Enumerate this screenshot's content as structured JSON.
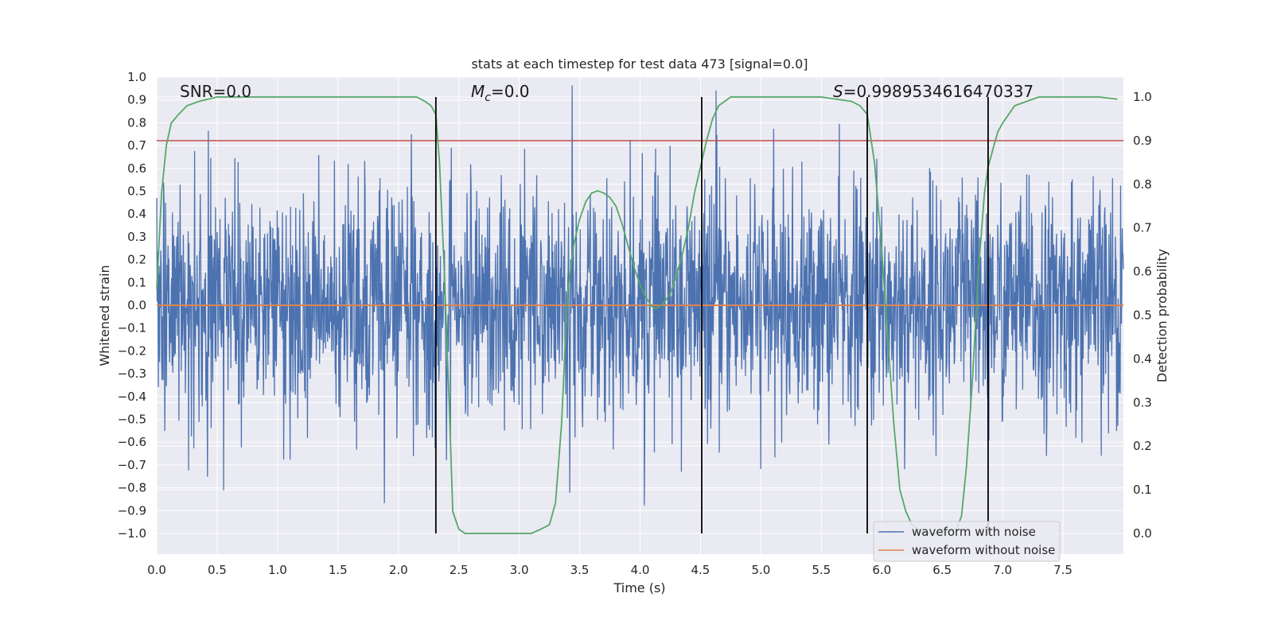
{
  "chart_data": {
    "type": "line",
    "title": "stats at each timestep for test data 473 [signal=0.0]",
    "xlabel": "Time (s)",
    "ylabel": "Whitened strain",
    "y2label": "Detection probability",
    "xlim": [
      0.0,
      8.0
    ],
    "ylim": [
      -1.0,
      1.0
    ],
    "y2lim": [
      0.0,
      1.0
    ],
    "xticks": [
      "0.0",
      "0.5",
      "1.0",
      "1.5",
      "2.0",
      "2.5",
      "3.0",
      "3.5",
      "4.0",
      "4.5",
      "5.0",
      "5.5",
      "6.0",
      "6.5",
      "7.0",
      "7.5"
    ],
    "yticks": [
      "1.0",
      "0.9",
      "0.8",
      "0.7",
      "0.6",
      "0.5",
      "0.4",
      "0.3",
      "0.2",
      "0.1",
      "0.0",
      "−0.1",
      "−0.2",
      "−0.3",
      "−0.4",
      "−0.5",
      "−0.6",
      "−0.7",
      "−0.8",
      "−0.9",
      "−1.0"
    ],
    "y2ticks": [
      "1.0",
      "0.9",
      "0.8",
      "0.7",
      "0.6",
      "0.5",
      "0.4",
      "0.3",
      "0.2",
      "0.1",
      "0.0"
    ],
    "grid": true,
    "annotations": {
      "snr": "SNR=0.0",
      "mc_symbol": "M",
      "mc_sub": "c",
      "mc_value": "=0.0",
      "s_symbol": "S",
      "s_value": "=0.9989534616470337"
    },
    "threshold": {
      "value": 0.9,
      "axis": "y2",
      "color": "#c44e52"
    },
    "vertical_lines_x": [
      2.31,
      4.51,
      5.88,
      6.88
    ],
    "series": [
      {
        "name": "waveform with noise",
        "color": "#4c72b0",
        "noise_envelope": {
          "typical_amplitude": 0.35,
          "max_peak": 0.99,
          "min_peak": -1.0
        }
      },
      {
        "name": "waveform without noise",
        "color": "#dd8452",
        "constant_value": 0.0
      },
      {
        "name": "",
        "color": "#55a868",
        "axis": "y2",
        "x": [
          0.0,
          0.04,
          0.08,
          0.12,
          0.18,
          0.25,
          0.35,
          0.5,
          1.0,
          1.5,
          2.0,
          2.15,
          2.22,
          2.27,
          2.31,
          2.34,
          2.38,
          2.42,
          2.45,
          2.5,
          2.55,
          2.7,
          3.0,
          3.1,
          3.18,
          3.25,
          3.3,
          3.35,
          3.4,
          3.45,
          3.5,
          3.55,
          3.6,
          3.65,
          3.7,
          3.75,
          3.8,
          3.85,
          3.9,
          3.95,
          4.0,
          4.05,
          4.1,
          4.13,
          4.16,
          4.2,
          4.25,
          4.3,
          4.35,
          4.4,
          4.45,
          4.5,
          4.55,
          4.6,
          4.65,
          4.7,
          4.75,
          4.8,
          5.0,
          5.5,
          5.75,
          5.82,
          5.88,
          5.94,
          6.0,
          6.05,
          6.1,
          6.15,
          6.2,
          6.25,
          6.3,
          6.35,
          6.5,
          6.62,
          6.66,
          6.7,
          6.75,
          6.8,
          6.85,
          6.88,
          6.92,
          6.96,
          7.0,
          7.05,
          7.1,
          7.2,
          7.3,
          7.5,
          7.8,
          7.95
        ],
        "values": [
          0.56,
          0.78,
          0.89,
          0.94,
          0.96,
          0.98,
          0.99,
          1.0,
          1.0,
          1.0,
          1.0,
          1.0,
          0.99,
          0.98,
          0.96,
          0.85,
          0.6,
          0.3,
          0.05,
          0.01,
          0.0,
          0.0,
          0.0,
          0.0,
          0.01,
          0.02,
          0.07,
          0.25,
          0.55,
          0.66,
          0.72,
          0.76,
          0.78,
          0.785,
          0.78,
          0.77,
          0.75,
          0.71,
          0.66,
          0.61,
          0.57,
          0.54,
          0.52,
          0.515,
          0.52,
          0.53,
          0.55,
          0.59,
          0.64,
          0.7,
          0.78,
          0.84,
          0.9,
          0.95,
          0.98,
          0.99,
          1.0,
          1.0,
          1.0,
          1.0,
          0.99,
          0.98,
          0.96,
          0.85,
          0.65,
          0.45,
          0.25,
          0.1,
          0.05,
          0.02,
          0.01,
          0.0,
          0.0,
          0.01,
          0.04,
          0.15,
          0.35,
          0.6,
          0.78,
          0.84,
          0.88,
          0.92,
          0.94,
          0.96,
          0.98,
          0.99,
          1.0,
          1.0,
          1.0,
          0.995
        ]
      }
    ],
    "legend": {
      "placement": "lower-right"
    }
  }
}
